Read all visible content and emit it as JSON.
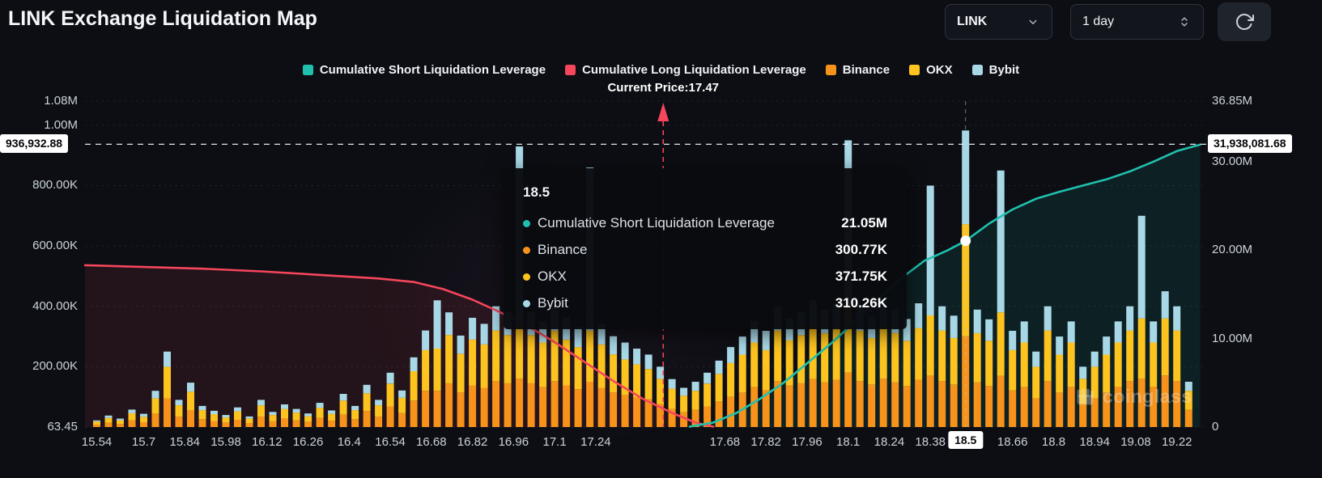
{
  "app": {
    "title": "LINK Exchange Liquidation Map"
  },
  "controls": {
    "symbol": "LINK",
    "interval": "1 day"
  },
  "icons": {
    "symbol_chevron": "chevron-down",
    "interval_stepper": "chevron-up-down",
    "refresh": "refresh-cw",
    "logo": "coinglass-fist"
  },
  "legend": {
    "items": [
      {
        "label": "Cumulative Short Liquidation Leverage",
        "color": "#20c0ae"
      },
      {
        "label": "Cumulative Long Liquidation Leverage",
        "color": "#f5465c"
      },
      {
        "label": "Binance",
        "color": "#f7931a"
      },
      {
        "label": "OKX",
        "color": "#fdc41f"
      },
      {
        "label": "Bybit",
        "color": "#a8d8e6"
      }
    ]
  },
  "current_price": {
    "label": "Current Price:17.47",
    "value": 17.47
  },
  "crosshair": {
    "x_label": "18.5",
    "x": 18.5,
    "marker_value_million": 21.05
  },
  "tooltip": {
    "title": "18.5",
    "rows": [
      {
        "label": "Cumulative Short Liquidation Leverage",
        "value": "21.05M",
        "color": "#20c0ae"
      },
      {
        "label": "Binance",
        "value": "300.77K",
        "color": "#f7931a"
      },
      {
        "label": "OKX",
        "value": "371.75K",
        "color": "#fdc41f"
      },
      {
        "label": "Bybit",
        "value": "310.26K",
        "color": "#a8d8e6"
      }
    ]
  },
  "watermark": {
    "text": "coinglass"
  },
  "axes": {
    "x": {
      "min": 15.5,
      "max": 19.32,
      "ticks": [
        {
          "label": "15.54",
          "value": 15.54
        },
        {
          "label": "15.7",
          "value": 15.7
        },
        {
          "label": "15.84",
          "value": 15.84
        },
        {
          "label": "15.98",
          "value": 15.98
        },
        {
          "label": "16.12",
          "value": 16.12
        },
        {
          "label": "16.26",
          "value": 16.26
        },
        {
          "label": "16.4",
          "value": 16.4
        },
        {
          "label": "16.54",
          "value": 16.54
        },
        {
          "label": "16.68",
          "value": 16.68
        },
        {
          "label": "16.82",
          "value": 16.82
        },
        {
          "label": "16.96",
          "value": 16.96
        },
        {
          "label": "17.1",
          "value": 17.1
        },
        {
          "label": "17.24",
          "value": 17.24
        },
        {
          "label": "17.68",
          "value": 17.68
        },
        {
          "label": "17.82",
          "value": 17.82
        },
        {
          "label": "17.96",
          "value": 17.96
        },
        {
          "label": "18.1",
          "value": 18.1
        },
        {
          "label": "18.24",
          "value": 18.24
        },
        {
          "label": "18.38",
          "value": 18.38
        },
        {
          "label": "18.5",
          "value": 18.5,
          "highlight": true
        },
        {
          "label": "18.66",
          "value": 18.66
        },
        {
          "label": "18.8",
          "value": 18.8
        },
        {
          "label": "18.94",
          "value": 18.94
        },
        {
          "label": "19.08",
          "value": 19.08
        },
        {
          "label": "19.22",
          "value": 19.22
        }
      ]
    },
    "left": {
      "max_value": 1080000,
      "ticks": [
        {
          "label": "1.08M",
          "value": 1080000
        },
        {
          "label": "1.00M",
          "value": 1000000
        },
        {
          "label": "800.00K",
          "value": 800000
        },
        {
          "label": "600.00K",
          "value": 600000
        },
        {
          "label": "400.00K",
          "value": 400000
        },
        {
          "label": "200.00K",
          "value": 200000
        },
        {
          "label": "63.45",
          "value": 0
        }
      ],
      "highlight": {
        "label": "936,932.88",
        "value": 936932.88
      }
    },
    "right": {
      "max_value": 36850000,
      "ticks": [
        {
          "label": "36.85M",
          "value": 36850000
        },
        {
          "label": "30.00M",
          "value": 30000000
        },
        {
          "label": "20.00M",
          "value": 20000000
        },
        {
          "label": "10.00M",
          "value": 10000000
        },
        {
          "label": "0",
          "value": 0
        }
      ],
      "highlight": {
        "label": "31,938,081.68",
        "value": 31938081.68
      }
    }
  },
  "chart_data": [
    {
      "type": "bar",
      "stacked": true,
      "y_axis": "left",
      "units": "thousand",
      "x": [
        15.54,
        15.58,
        15.62,
        15.66,
        15.7,
        15.74,
        15.78,
        15.82,
        15.86,
        15.9,
        15.94,
        15.98,
        16.02,
        16.06,
        16.1,
        16.14,
        16.18,
        16.22,
        16.26,
        16.3,
        16.34,
        16.38,
        16.42,
        16.46,
        16.5,
        16.54,
        16.58,
        16.62,
        16.66,
        16.7,
        16.74,
        16.78,
        16.82,
        16.86,
        16.9,
        16.94,
        16.98,
        17.02,
        17.06,
        17.1,
        17.14,
        17.18,
        17.22,
        17.26,
        17.3,
        17.34,
        17.38,
        17.42,
        17.46,
        17.5,
        17.54,
        17.58,
        17.62,
        17.66,
        17.7,
        17.74,
        17.78,
        17.82,
        17.86,
        17.9,
        17.94,
        17.98,
        18.02,
        18.06,
        18.1,
        18.14,
        18.18,
        18.22,
        18.26,
        18.3,
        18.34,
        18.38,
        18.42,
        18.46,
        18.5,
        18.54,
        18.58,
        18.62,
        18.66,
        18.7,
        18.74,
        18.78,
        18.82,
        18.86,
        18.9,
        18.94,
        18.98,
        19.02,
        19.06,
        19.1,
        19.14,
        19.18,
        19.22,
        19.26
      ],
      "series": [
        {
          "name": "Binance",
          "color": "#f7931a",
          "values": [
            8,
            14,
            10,
            22,
            16,
            45,
            95,
            34,
            55,
            26,
            20,
            15,
            24,
            13,
            34,
            19,
            28,
            22,
            17,
            30,
            21,
            42,
            26,
            53,
            34,
            68,
            46,
            88,
            120,
            120,
            145,
            115,
            138,
            130,
            152,
            145,
            160,
            145,
            132,
            152,
            138,
            125,
            150,
            130,
            115,
            106,
            98,
            92,
            76,
            60,
            49,
            57,
            68,
            84,
            100,
            114,
            133,
            121,
            152,
            137,
            145,
            159,
            148,
            156,
            180,
            152,
            140,
            160,
            148,
            136,
            156,
            170,
            152,
            140,
            300.77,
            148,
            136,
            170,
            121,
            133,
            95,
            152,
            114,
            133,
            76,
            95,
            114,
            133,
            152,
            160,
            133,
            171,
            152,
            57
          ]
        },
        {
          "name": "OKX",
          "color": "#fdc41f",
          "values": [
            10,
            16,
            12,
            24,
            18,
            50,
            105,
            38,
            62,
            30,
            23,
            17,
            28,
            15,
            38,
            21,
            32,
            26,
            19,
            34,
            23,
            46,
            30,
            59,
            38,
            76,
            51,
            97,
            135,
            140,
            160,
            128,
            152,
            144,
            168,
            160,
            180,
            160,
            148,
            168,
            152,
            140,
            170,
            144,
            126,
            118,
            110,
            100,
            84,
            67,
            55,
            63,
            76,
            92,
            112,
            126,
            147,
            134,
            168,
            151,
            160,
            176,
            163,
            172,
            230,
            168,
            155,
            176,
            164,
            150,
            172,
            200,
            168,
            155,
            371.75,
            163,
            150,
            210,
            134,
            147,
            105,
            168,
            126,
            147,
            84,
            105,
            126,
            147,
            168,
            200,
            147,
            189,
            168,
            63
          ]
        },
        {
          "name": "Bybit",
          "color": "#a8d8e6",
          "values": [
            4,
            8,
            6,
            12,
            10,
            25,
            50,
            18,
            30,
            14,
            11,
            8,
            13,
            7,
            18,
            10,
            15,
            12,
            9,
            16,
            11,
            22,
            14,
            28,
            18,
            36,
            24,
            46,
            65,
            160,
            75,
            60,
            72,
            68,
            80,
            76,
            590,
            76,
            70,
            80,
            72,
            66,
            540,
            68,
            60,
            56,
            52,
            48,
            40,
            32,
            26,
            30,
            36,
            44,
            53,
            60,
            70,
            64,
            80,
            72,
            76,
            84,
            78,
            82,
            540,
            80,
            74,
            84,
            78,
            72,
            82,
            430,
            80,
            74,
            310.26,
            78,
            71,
            470,
            64,
            70,
            50,
            80,
            60,
            70,
            40,
            50,
            60,
            70,
            80,
            340,
            70,
            90,
            80,
            30
          ]
        }
      ]
    },
    {
      "type": "line",
      "name": "Cumulative Long Liquidation Leverage",
      "color": "#f5465c",
      "y_axis": "right",
      "units": "million",
      "x": [
        15.5,
        15.7,
        15.9,
        16.1,
        16.3,
        16.5,
        16.62,
        16.72,
        16.82,
        16.9,
        17.0,
        17.1,
        17.2,
        17.3,
        17.4,
        17.5,
        17.58,
        17.64
      ],
      "values": [
        18.3,
        18.1,
        17.9,
        17.6,
        17.2,
        16.8,
        16.4,
        15.6,
        14.4,
        13.2,
        11.6,
        9.6,
        7.4,
        5.2,
        3.2,
        1.6,
        0.5,
        0.05
      ]
    },
    {
      "type": "line",
      "name": "Cumulative Short Liquidation Leverage",
      "color": "#20c0ae",
      "y_axis": "right",
      "units": "million",
      "x": [
        17.56,
        17.64,
        17.72,
        17.8,
        17.88,
        17.96,
        18.04,
        18.12,
        18.2,
        18.28,
        18.36,
        18.44,
        18.5,
        18.58,
        18.66,
        18.74,
        18.82,
        18.9,
        18.98,
        19.06,
        19.14,
        19.22,
        19.3
      ],
      "values": [
        0.05,
        0.5,
        1.6,
        3.2,
        5.0,
        7.2,
        9.4,
        11.8,
        14.4,
        16.8,
        18.8,
        20.0,
        21.05,
        23.0,
        24.6,
        25.8,
        26.6,
        27.3,
        28.0,
        28.9,
        30.0,
        31.2,
        31.94
      ]
    }
  ]
}
